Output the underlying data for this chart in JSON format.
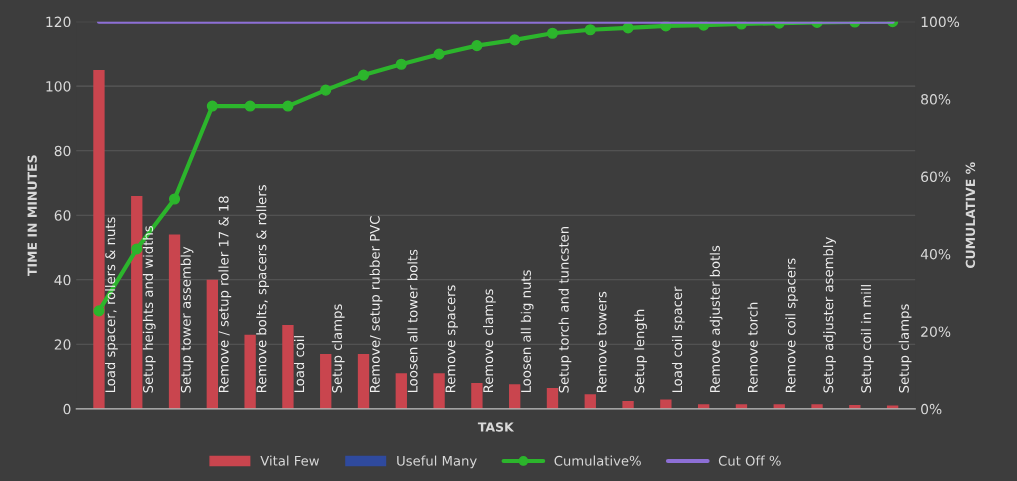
{
  "chart_data": {
    "type": "bar",
    "categories": [
      "Load spacer, rollers & nuts",
      "Setup heights and widths",
      "Setup tower assembly",
      "Remove / setup roller 17 & 18",
      "Remove bolts, spacers & rollers",
      "Load coil",
      "Setup clamps",
      "Remove/ setup rubber PVC",
      "Loosen all tower bolts",
      "Remove spacers",
      "Remove clamps",
      "Loosen all big nuts",
      "Setup torch and tuncsten",
      "Remove towers",
      "Setup length",
      "Load coil spacer",
      "Remove adjuster botls",
      "Remove torch",
      "Remove coil spacers",
      "Setup adjuster asembly",
      "Setup coil in mill",
      "Setup clamps"
    ],
    "xlabel": "TASK",
    "ylabel": "TIME IN MINUTES",
    "y2label": "CUMULATIVE %",
    "ylim": [
      0,
      120
    ],
    "yticks": [
      0,
      20,
      40,
      60,
      80,
      100,
      120
    ],
    "y2lim": [
      0,
      100
    ],
    "y2ticks": [
      {
        "value": 0,
        "label": "0%"
      },
      {
        "value": 20,
        "label": "20%"
      },
      {
        "value": 40,
        "label": "40%"
      },
      {
        "value": 60,
        "label": "60%"
      },
      {
        "value": 80,
        "label": "80%"
      },
      {
        "value": 100,
        "label": "100%"
      }
    ],
    "grid": "y",
    "legend": "bottom",
    "series": [
      {
        "name": "Vital Few",
        "color": "#c9454e",
        "values": [
          105,
          66,
          54,
          40,
          23,
          26,
          17,
          17,
          11,
          11,
          8,
          7.6,
          6.5,
          4.5,
          2.4,
          2.9,
          1.4,
          1.4,
          1.4,
          1.4,
          1.2,
          1
        ]
      },
      {
        "name": "Useful Many",
        "color": "#2f4a9e",
        "values": [
          null,
          null,
          null,
          null,
          null,
          null,
          null,
          null,
          null,
          null,
          null,
          null,
          null,
          null,
          null,
          null,
          null,
          null,
          null,
          null,
          null,
          null
        ]
      },
      {
        "name": "Cumulative%",
        "type": "line",
        "axis": "y2",
        "marker": "circle",
        "color": "#2cb52c",
        "values": [
          25.3,
          41.3,
          54.2,
          78.2,
          78.2,
          78.2,
          82.3,
          86.2,
          89.0,
          91.6,
          93.8,
          95.3,
          97.0,
          97.9,
          98.4,
          98.9,
          99.1,
          99.4,
          99.6,
          99.8,
          99.9,
          100
        ]
      },
      {
        "name": "Cut Off %",
        "type": "line",
        "axis": "y2",
        "color": "#8d6fd6",
        "values": [
          100,
          100,
          100,
          100,
          100,
          100,
          100,
          100,
          100,
          100,
          100,
          100,
          100,
          100,
          100,
          100,
          100,
          100,
          100,
          100,
          100,
          100
        ]
      }
    ]
  }
}
